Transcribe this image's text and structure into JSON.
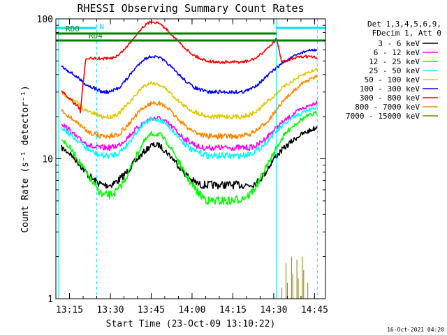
{
  "chart_data": {
    "type": "line",
    "title": "RHESSI Observing Summary Count Rates",
    "xlabel": "Start Time (23-Oct-09 13:10:22)",
    "ylabel": "Count Rate (s⁻¹ detector⁻¹)",
    "y_scale": "log",
    "ylim": [
      1,
      100
    ],
    "xlim": [
      "13:10",
      "14:49"
    ],
    "x_ticks": [
      "13:15",
      "13:30",
      "13:45",
      "14:00",
      "14:15",
      "14:30",
      "14:45"
    ],
    "y_ticks": [
      "1",
      "10",
      "100"
    ],
    "grid": false,
    "legend_position": "outside-right",
    "legend_header": [
      "Det 1,3,4,5,6,9,",
      "FDecim 1, Att 0"
    ],
    "stamp": "16-Oct-2021 04:20",
    "state_bars": [
      {
        "label": "N",
        "color": "#00e5ff",
        "segments": [
          [
            "13:10",
            "13:25"
          ],
          [
            "14:31",
            "14:49"
          ]
        ]
      },
      {
        "label": "RD0",
        "color": "#007f00",
        "segments": [
          [
            "13:10",
            "14:31"
          ]
        ]
      },
      {
        "label": "RD4",
        "color": "#007f00",
        "segments": [
          [
            "13:10",
            "14:31"
          ],
          [
            "14:31",
            "14:49"
          ]
        ]
      }
    ],
    "night_markers": {
      "color": "#00e5ff",
      "solid": [
        "13:11",
        "14:31"
      ],
      "dashed": [
        "13:25",
        "14:46"
      ]
    },
    "series": [
      {
        "name": "3 - 6 keV",
        "color": "#000000",
        "x": [
          "13:12",
          "13:15",
          "13:18",
          "13:21",
          "13:24",
          "13:27",
          "13:30",
          "13:33",
          "13:36",
          "13:39",
          "13:42",
          "13:45",
          "13:48",
          "13:51",
          "13:54",
          "13:57",
          "14:00",
          "14:03",
          "14:06",
          "14:09",
          "14:12",
          "14:15",
          "14:18",
          "14:21",
          "14:24",
          "14:27",
          "14:30",
          "14:33",
          "14:36",
          "14:39",
          "14:42",
          "14:45",
          "14:46"
        ],
        "values": [
          12,
          11,
          9.5,
          8,
          7,
          6.5,
          6.5,
          7,
          8,
          9.5,
          11,
          12.5,
          12.5,
          11,
          9.5,
          8,
          7,
          6.5,
          6.5,
          6.5,
          6.5,
          6.5,
          6.5,
          6.5,
          6.8,
          8,
          10,
          11.5,
          13,
          14.5,
          15.5,
          16.5,
          17
        ]
      },
      {
        "name": "6 - 12 keV",
        "color": "#ff00ff",
        "x": [
          "13:12",
          "13:15",
          "13:18",
          "13:21",
          "13:24",
          "13:27",
          "13:30",
          "13:33",
          "13:36",
          "13:39",
          "13:42",
          "13:45",
          "13:48",
          "13:51",
          "13:54",
          "13:57",
          "14:00",
          "14:03",
          "14:06",
          "14:09",
          "14:12",
          "14:15",
          "14:18",
          "14:21",
          "14:24",
          "14:27",
          "14:30",
          "14:33",
          "14:36",
          "14:39",
          "14:42",
          "14:45",
          "14:46"
        ],
        "values": [
          18,
          16,
          14,
          13,
          12,
          12,
          12,
          12.5,
          14,
          16,
          18,
          19.5,
          19.5,
          18,
          16,
          14,
          13,
          12,
          12,
          12,
          12,
          12,
          12,
          12,
          12.5,
          14,
          16,
          18,
          20,
          22,
          23.5,
          25,
          25.5
        ]
      },
      {
        "name": "12 - 25 keV",
        "color": "#00ff00",
        "x": [
          "13:12",
          "13:15",
          "13:18",
          "13:21",
          "13:24",
          "13:27",
          "13:30",
          "13:33",
          "13:36",
          "13:39",
          "13:42",
          "13:45",
          "13:48",
          "13:51",
          "13:54",
          "13:57",
          "14:00",
          "14:03",
          "14:06",
          "14:09",
          "14:12",
          "14:15",
          "14:18",
          "14:21",
          "14:24",
          "14:27",
          "14:30",
          "14:33",
          "14:36",
          "14:39",
          "14:42",
          "14:45",
          "14:46"
        ],
        "values": [
          14,
          12,
          10,
          8,
          6.5,
          5.5,
          5.5,
          6,
          7.5,
          10,
          13,
          15,
          15,
          13,
          10.5,
          8,
          6.5,
          5.5,
          5,
          5,
          5,
          5,
          5.2,
          5.5,
          6.5,
          8.5,
          11,
          14,
          16.5,
          18.5,
          20,
          21,
          21.5
        ]
      },
      {
        "name": "25 - 50 keV",
        "color": "#00ffff",
        "x": [
          "13:12",
          "13:15",
          "13:18",
          "13:21",
          "13:24",
          "13:27",
          "13:30",
          "13:33",
          "13:36",
          "13:39",
          "13:42",
          "13:45",
          "13:48",
          "13:51",
          "13:54",
          "13:57",
          "14:00",
          "14:03",
          "14:06",
          "14:09",
          "14:12",
          "14:15",
          "14:18",
          "14:21",
          "14:24",
          "14:27",
          "14:30",
          "14:33",
          "14:36",
          "14:39",
          "14:42",
          "14:45",
          "14:46"
        ],
        "values": [
          17,
          15,
          13.5,
          12,
          11,
          10.5,
          10.5,
          11,
          12.5,
          15,
          17.5,
          19,
          19,
          17.5,
          15,
          13,
          11.5,
          11,
          10.5,
          10.5,
          10.5,
          10.5,
          10.5,
          10.8,
          11.5,
          13,
          15,
          17,
          19,
          20.5,
          22,
          23,
          23.5
        ]
      },
      {
        "name": "50 - 100 keV",
        "color": "#e0c800",
        "x": [
          "13:12",
          "13:15",
          "13:18",
          "13:21",
          "13:24",
          "13:27",
          "13:30",
          "13:33",
          "13:36",
          "13:39",
          "13:42",
          "13:45",
          "13:48",
          "13:51",
          "13:54",
          "13:57",
          "14:00",
          "14:03",
          "14:06",
          "14:09",
          "14:12",
          "14:15",
          "14:18",
          "14:21",
          "14:24",
          "14:27",
          "14:30",
          "14:33",
          "14:36",
          "14:39",
          "14:42",
          "14:45",
          "14:46"
        ],
        "values": [
          30,
          27,
          25,
          22,
          21,
          20,
          20,
          21,
          24,
          28,
          33,
          35,
          34,
          31,
          27,
          24,
          22,
          21,
          20,
          20,
          20,
          20,
          20,
          20.5,
          22,
          25,
          28,
          32,
          35,
          38,
          41,
          43,
          44
        ]
      },
      {
        "name": "100 - 300 keV",
        "color": "#0000ff",
        "x": [
          "13:12",
          "13:15",
          "13:18",
          "13:21",
          "13:24",
          "13:27",
          "13:30",
          "13:33",
          "13:36",
          "13:39",
          "13:42",
          "13:45",
          "13:48",
          "13:51",
          "13:54",
          "13:57",
          "14:00",
          "14:03",
          "14:06",
          "14:09",
          "14:12",
          "14:15",
          "14:18",
          "14:21",
          "14:24",
          "14:27",
          "14:30",
          "14:33",
          "14:36",
          "14:39",
          "14:42",
          "14:45",
          "14:46"
        ],
        "values": [
          46,
          42,
          38,
          34,
          32,
          30,
          30,
          32,
          37,
          44,
          51,
          54,
          53,
          48,
          42,
          37,
          33,
          31,
          30,
          30,
          30,
          30,
          30,
          31,
          34,
          38,
          43,
          48,
          52,
          56,
          59,
          60,
          60
        ]
      },
      {
        "name": "300 - 800 keV",
        "color": "#ff0000",
        "x": [
          "13:12",
          "13:15",
          "13:18",
          "13:19",
          "13:21",
          "13:24",
          "13:27",
          "13:30",
          "13:33",
          "13:36",
          "13:39",
          "13:42",
          "13:45",
          "13:48",
          "13:51",
          "13:54",
          "13:57",
          "14:00",
          "14:03",
          "14:06",
          "14:09",
          "14:12",
          "14:15",
          "14:18",
          "14:21",
          "14:24",
          "14:27",
          "14:30",
          "14:31",
          "14:33",
          "14:36",
          "14:39",
          "14:42",
          "14:45",
          "14:46"
        ],
        "values": [
          30,
          27,
          24,
          22,
          52,
          52,
          52,
          52,
          55,
          63,
          75,
          88,
          96,
          93,
          83,
          72,
          63,
          56,
          52,
          50,
          49,
          49,
          49,
          49,
          50,
          53,
          60,
          68,
          72,
          49,
          51,
          53,
          54,
          53,
          52
        ]
      },
      {
        "name": "800 - 7000 keV",
        "color": "#ff8800",
        "x": [
          "13:12",
          "13:15",
          "13:18",
          "13:21",
          "13:24",
          "13:27",
          "13:30",
          "13:33",
          "13:36",
          "13:39",
          "13:42",
          "13:45",
          "13:48",
          "13:51",
          "13:54",
          "13:57",
          "14:00",
          "14:03",
          "14:06",
          "14:09",
          "14:12",
          "14:15",
          "14:18",
          "14:21",
          "14:24",
          "14:27",
          "14:30",
          "14:33",
          "14:36",
          "14:39",
          "14:42",
          "14:45",
          "14:46"
        ],
        "values": [
          22,
          20,
          18,
          16,
          15,
          14.5,
          14.5,
          15,
          17,
          20,
          23,
          25,
          25,
          23,
          20,
          17.5,
          16,
          15,
          14.5,
          14.5,
          14.5,
          14.5,
          14.5,
          15,
          16,
          18,
          21,
          25,
          29,
          33,
          36,
          38,
          39
        ]
      },
      {
        "name": "7000 - 15000 keV",
        "color": "#808000",
        "x": [
          "14:33",
          "14:34",
          "14:35",
          "14:36",
          "14:37",
          "14:38",
          "14:39",
          "14:40",
          "14:41",
          "14:42"
        ],
        "values": [
          1.2,
          1.8,
          1.3,
          2.0,
          1.5,
          1.9,
          1.4,
          2.0,
          1.6,
          1.3
        ]
      }
    ]
  }
}
